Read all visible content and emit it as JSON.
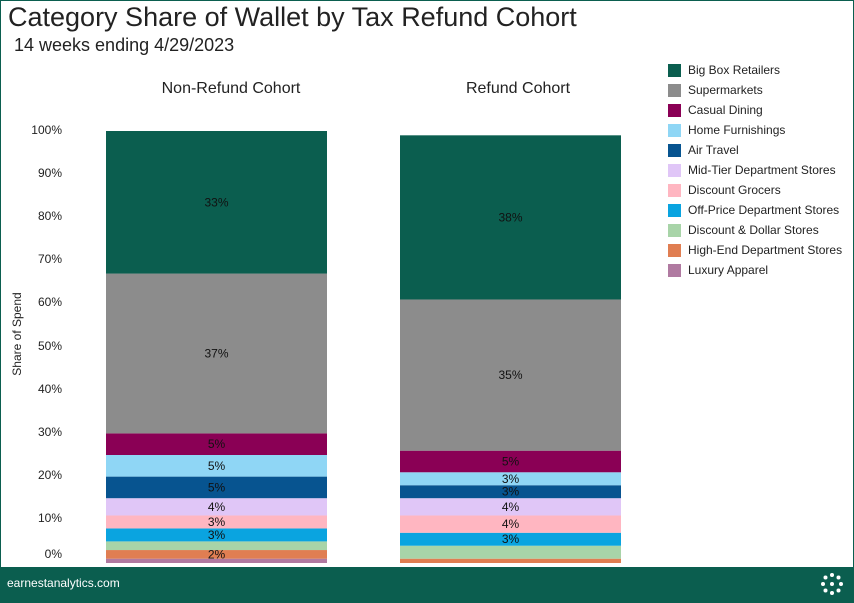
{
  "chart_data": {
    "type": "bar",
    "stacked": true,
    "title": "Category Share of Wallet by Tax Refund Cohort",
    "subtitle": "14 weeks ending 4/29/2023",
    "ylabel": "Share of Spend",
    "ylim": [
      0,
      100
    ],
    "y_ticks": [
      "100%",
      "90%",
      "80%",
      "70%",
      "60%",
      "50%",
      "40%",
      "30%",
      "20%",
      "10%",
      "0%"
    ],
    "legend_position": "right",
    "categories": [
      "Non-Refund Cohort",
      "Refund Cohort"
    ],
    "series": [
      {
        "name": "Luxury Apparel",
        "color": "#b07aa1",
        "values": [
          1,
          0
        ],
        "labels": [
          "",
          ""
        ]
      },
      {
        "name": "High-End Department Stores",
        "color": "#e07e52",
        "values": [
          2,
          1
        ],
        "labels": [
          "2%",
          ""
        ]
      },
      {
        "name": "Discount & Dollar Stores",
        "color": "#a8d4a8",
        "values": [
          2,
          3
        ],
        "labels": [
          "",
          ""
        ]
      },
      {
        "name": "Off-Price Department Stores",
        "color": "#0aa4e0",
        "values": [
          3,
          3
        ],
        "labels": [
          "3%",
          "3%"
        ]
      },
      {
        "name": "Discount Grocers",
        "color": "#ffb6c1",
        "values": [
          3,
          4
        ],
        "labels": [
          "3%",
          "4%"
        ]
      },
      {
        "name": "Mid-Tier Department Stores",
        "color": "#e0c6f7",
        "values": [
          4,
          4
        ],
        "labels": [
          "4%",
          "4%"
        ]
      },
      {
        "name": "Air Travel",
        "color": "#075490",
        "values": [
          5,
          3
        ],
        "labels": [
          "5%",
          "3%"
        ]
      },
      {
        "name": "Home Furnishings",
        "color": "#8fd6f5",
        "values": [
          5,
          3
        ],
        "labels": [
          "5%",
          "3%"
        ]
      },
      {
        "name": "Casual Dining",
        "color": "#8a0055",
        "values": [
          5,
          5
        ],
        "labels": [
          "5%",
          "5%"
        ]
      },
      {
        "name": "Supermarkets",
        "color": "#8c8c8c",
        "values": [
          37,
          35
        ],
        "labels": [
          "37%",
          "35%"
        ]
      },
      {
        "name": "Big Box Retailers",
        "color": "#0b5e4f",
        "values": [
          33,
          38
        ],
        "labels": [
          "33%",
          "38%"
        ]
      }
    ]
  },
  "legend": {
    "items": [
      {
        "label": "Big Box Retailers",
        "color": "#0b5e4f"
      },
      {
        "label": "Supermarkets",
        "color": "#8c8c8c"
      },
      {
        "label": "Casual Dining",
        "color": "#8a0055"
      },
      {
        "label": "Home Furnishings",
        "color": "#8fd6f5"
      },
      {
        "label": "Air Travel",
        "color": "#075490"
      },
      {
        "label": "Mid-Tier Department Stores",
        "color": "#e0c6f7"
      },
      {
        "label": "Discount Grocers",
        "color": "#ffb6c1"
      },
      {
        "label": "Off-Price Department Stores",
        "color": "#0aa4e0"
      },
      {
        "label": "Discount & Dollar Stores",
        "color": "#a8d4a8"
      },
      {
        "label": "High-End Department Stores",
        "color": "#e07e52"
      },
      {
        "label": "Luxury Apparel",
        "color": "#b07aa1"
      }
    ]
  },
  "footer": {
    "brand": "earnestanalytics.com",
    "brand_icon": "earnest-logo-icon",
    "background": "#0b5e4f"
  }
}
